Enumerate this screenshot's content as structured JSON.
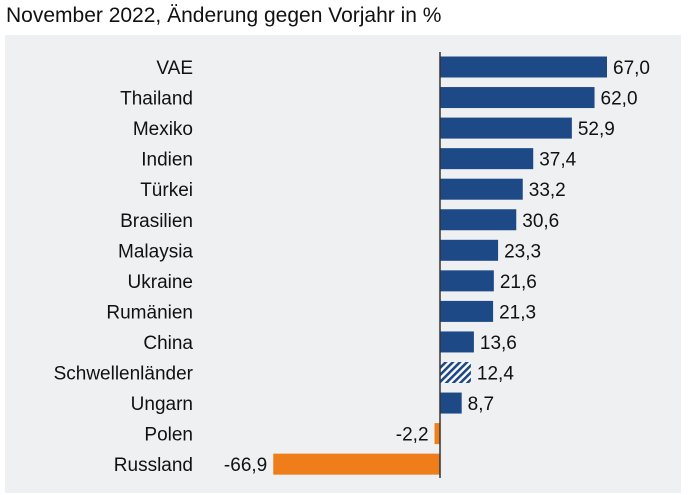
{
  "chart_data": {
    "type": "bar",
    "orientation": "horizontal",
    "title": "November 2022, Änderung gegen Vorjahr in %",
    "categories": [
      "VAE",
      "Thailand",
      "Mexiko",
      "Indien",
      "Türkei",
      "Brasilien",
      "Malaysia",
      "Ukraine",
      "Rumänien",
      "China",
      "Schwellenländer",
      "Ungarn",
      "Polen",
      "Russland"
    ],
    "values": [
      67.0,
      62.0,
      52.9,
      37.4,
      33.2,
      30.6,
      23.3,
      21.6,
      21.3,
      13.6,
      12.4,
      8.7,
      -2.2,
      -66.9
    ],
    "labels": [
      "67,0",
      "62,0",
      "52,9",
      "37,4",
      "33,2",
      "30,6",
      "23,3",
      "21,6",
      "21,3",
      "13,6",
      "12,4",
      "8,7",
      "-2,2",
      "-66,9"
    ],
    "xlim": [
      -67,
      67
    ],
    "grid": false,
    "legend": "none",
    "colors": {
      "positive": "#1d4a87",
      "negative": "#ee7d1a",
      "background": "#eef0f2",
      "highlight_pattern": "hatched",
      "axis": "#333333"
    },
    "hatched_category": "Schwellenländer"
  }
}
